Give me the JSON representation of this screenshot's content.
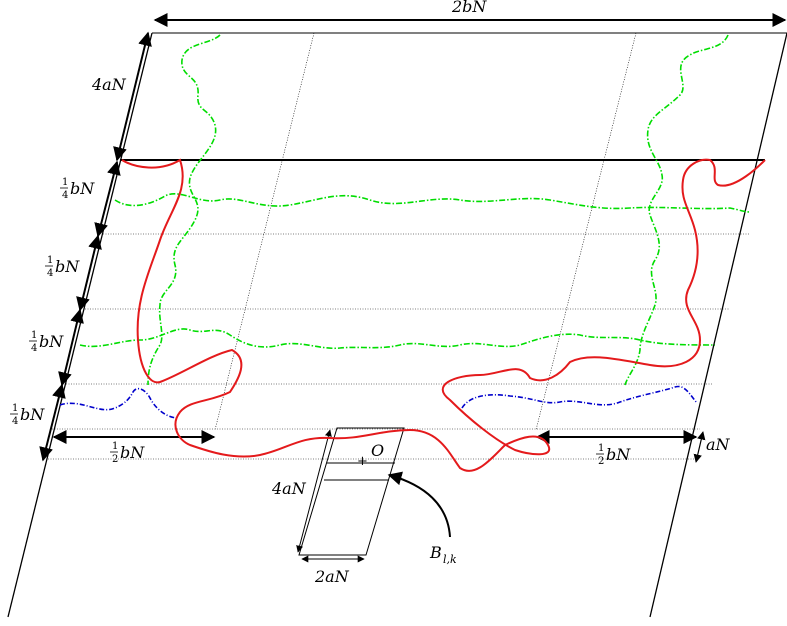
{
  "labels": {
    "top_width": "2bN",
    "top_height": "4aN",
    "quarter_1": "bN",
    "quarter_2": "bN",
    "quarter_3": "bN",
    "quarter_4": "bN",
    "quarter_num": "1",
    "quarter_den": "4",
    "half_left": "bN",
    "half_right": "bN",
    "half_num": "1",
    "half_den": "2",
    "a_n": "aN",
    "box_height": "4aN",
    "box_width": "2aN",
    "origin": "O",
    "origin_mark": "+",
    "block_label_main": "B",
    "block_label_sub": "l,k"
  },
  "colors": {
    "red_path": "#e41a1c",
    "green_dashed": "#00cc00",
    "blue_dashdot": "#0000cc",
    "lines": "#000000"
  }
}
